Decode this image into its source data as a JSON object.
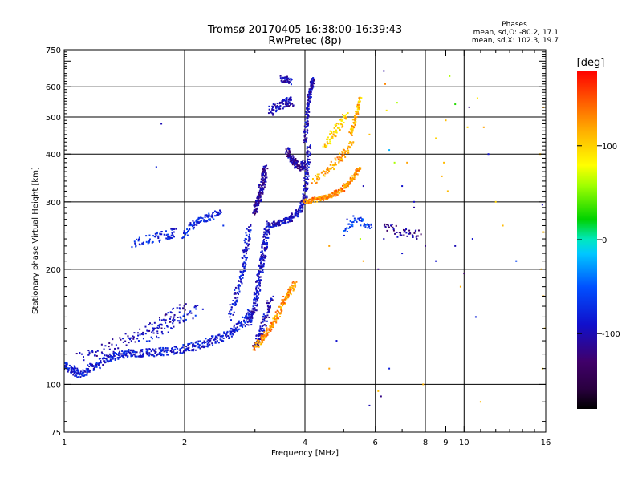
{
  "chart_data": {
    "type": "scatter",
    "title": "Tromsø 20170405 16:38:00-16:39:43",
    "subtitle": "RwPretec (8p)",
    "xlabel": "Frequency [MHz]",
    "ylabel": "Stationary phase Virtual Height [km]",
    "x_scale": "log",
    "y_scale": "log",
    "xlim": [
      1,
      16
    ],
    "ylim": [
      75,
      750
    ],
    "x_ticks": [
      1,
      2,
      4,
      6,
      8,
      9,
      10,
      16
    ],
    "x_tick_labels": [
      "1",
      "2",
      "4",
      "6",
      "8",
      "9",
      "10",
      "16"
    ],
    "y_ticks": [
      75,
      100,
      200,
      300,
      400,
      500,
      600,
      750
    ],
    "y_tick_labels": [
      "75",
      "100",
      "200",
      "300",
      "400",
      "500",
      "600",
      "750"
    ],
    "x_gridlines": [
      2,
      4,
      6,
      8,
      10
    ],
    "y_gridlines": [
      100,
      200,
      300,
      400,
      500,
      600
    ],
    "stats": {
      "header": "Phases",
      "line_o": "mean, sd,O: -80.2, 17.1",
      "line_x": "mean, sd,X: 102.3, 19.7"
    },
    "colorbar": {
      "label": "[deg]",
      "range": [
        -180,
        180
      ],
      "tick_values": [
        100,
        0,
        -100
      ],
      "tick_labels": [
        "100",
        "0",
        "-100"
      ]
    },
    "series": [
      {
        "traces": [
          {
            "x": [
              1.0,
              1.05,
              1.1,
              1.2,
              1.3,
              1.4,
              1.5,
              1.65,
              1.8,
              2.0,
              2.2,
              2.4,
              2.6,
              2.8,
              2.95
            ],
            "y": [
              112,
              109,
              106,
              112,
              118,
              119,
              121,
              121,
              122,
              124,
              127,
              131,
              136,
              145,
              155
            ],
            "spread": 0.035,
            "phase": -85,
            "n": 5
          },
          {
            "x": [
              2.9,
              3.0,
              3.05,
              3.1,
              3.15,
              3.2,
              3.25
            ],
            "y": [
              145,
              160,
              180,
              200,
              220,
              245,
              265
            ],
            "spread": 0.03,
            "phase": -95,
            "n": 5
          },
          {
            "x": [
              2.6,
              2.7,
              2.8,
              2.85,
              2.9
            ],
            "y": [
              150,
              175,
              200,
              230,
              260
            ],
            "spread": 0.03,
            "phase": -90,
            "n": 4
          },
          {
            "x": [
              1.1,
              1.3,
              1.5,
              1.7,
              1.85,
              2.0
            ],
            "y": [
              118,
              125,
              133,
              142,
              150,
              158
            ],
            "spread": 0.05,
            "phase": -100,
            "n": 3
          },
          {
            "x": [
              1.6,
              1.8,
              2.0,
              2.2
            ],
            "y": [
              132,
              140,
              150,
              158
            ],
            "spread": 0.05,
            "phase": -80,
            "n": 2
          },
          {
            "x": [
              3.0,
              3.05,
              3.1,
              3.15,
              3.2
            ],
            "y": [
              280,
              300,
              320,
              345,
              370
            ],
            "spread": 0.03,
            "phase": -110,
            "n": 5
          },
          {
            "x": [
              3.3,
              3.5,
              3.7,
              3.9,
              4.0,
              4.05,
              4.1
            ],
            "y": [
              262,
              265,
              272,
              285,
              310,
              360,
              430
            ],
            "spread": 0.025,
            "phase": -95,
            "n": 5
          },
          {
            "x": [
              3.0,
              3.1,
              3.2,
              3.3
            ],
            "y": [
              125,
              135,
              150,
              170
            ],
            "spread": 0.03,
            "phase": -100,
            "n": 4
          },
          {
            "x": [
              4.0,
              4.05,
              4.1,
              4.15,
              4.2
            ],
            "y": [
              430,
              500,
              560,
              600,
              630
            ],
            "spread": 0.02,
            "phase": -100,
            "n": 5
          },
          {
            "x": [
              3.6,
              3.7,
              3.8,
              3.9,
              4.0
            ],
            "y": [
              410,
              390,
              375,
              370,
              380
            ],
            "spread": 0.03,
            "phase": -110,
            "n": 4
          },
          {
            "x": [
              3.3,
              3.45,
              3.6,
              3.7
            ],
            "y": [
              520,
              535,
              545,
              550
            ],
            "spread": 0.04,
            "phase": -100,
            "n": 4
          },
          {
            "x": [
              3.5,
              3.6,
              3.7
            ],
            "y": [
              630,
              625,
              620
            ],
            "spread": 0.03,
            "phase": -95,
            "n": 3
          },
          {
            "x": [
              1.5,
              1.65,
              1.8,
              1.9
            ],
            "y": [
              235,
              240,
              245,
              250
            ],
            "spread": 0.04,
            "phase": -80,
            "n": 3
          },
          {
            "x": [
              2.0,
              2.1,
              2.2,
              2.35,
              2.5
            ],
            "y": [
              245,
              262,
              270,
              275,
              285
            ],
            "spread": 0.03,
            "phase": -75,
            "n": 3
          },
          {
            "x": [
              4.0,
              4.3,
              4.6,
              4.9,
              5.2,
              5.5
            ],
            "y": [
              300,
              305,
              310,
              320,
              340,
              370
            ],
            "spread": 0.02,
            "phase": 130,
            "n": 6
          },
          {
            "x": [
              4.2,
              4.5,
              4.8,
              5.0,
              5.3
            ],
            "y": [
              340,
              360,
              380,
              400,
              430
            ],
            "spread": 0.03,
            "phase": 120,
            "n": 3
          },
          {
            "x": [
              5.2,
              5.3,
              5.4,
              5.5
            ],
            "y": [
              450,
              480,
              520,
              560
            ],
            "spread": 0.02,
            "phase": 110,
            "n": 3
          },
          {
            "x": [
              3.0,
              3.2,
              3.4,
              3.6,
              3.8
            ],
            "y": [
              125,
              135,
              150,
              170,
              185
            ],
            "spread": 0.025,
            "phase": 125,
            "n": 6
          },
          {
            "x": [
              4.5,
              4.7,
              4.9,
              5.1
            ],
            "y": [
              420,
              450,
              480,
              510
            ],
            "spread": 0.03,
            "phase": 100,
            "n": 3
          },
          {
            "x": [
              5.0,
              5.3,
              5.6,
              5.9
            ],
            "y": [
              250,
              270,
              265,
              255
            ],
            "spread": 0.03,
            "phase": -60,
            "n": 2
          },
          {
            "x": [
              6.3,
              6.8,
              7.3,
              7.8
            ],
            "y": [
              260,
              250,
              248,
              245
            ],
            "spread": 0.04,
            "phase": -115,
            "n": 2
          }
        ]
      }
    ],
    "scattered_points": [
      [
        1.75,
        480,
        -100
      ],
      [
        1.7,
        370,
        -80
      ],
      [
        2.5,
        260,
        -70
      ],
      [
        6.3,
        660,
        -110
      ],
      [
        6.35,
        610,
        130
      ],
      [
        6.4,
        520,
        90
      ],
      [
        6.5,
        410,
        -20
      ],
      [
        6.7,
        380,
        60
      ],
      [
        7.0,
        330,
        -90
      ],
      [
        7.5,
        290,
        -110
      ],
      [
        8.0,
        230,
        -120
      ],
      [
        8.5,
        210,
        -90
      ],
      [
        9.0,
        490,
        110
      ],
      [
        9.2,
        640,
        60
      ],
      [
        9.5,
        230,
        -100
      ],
      [
        10.0,
        195,
        -130
      ],
      [
        10.2,
        470,
        100
      ],
      [
        10.8,
        560,
        90
      ],
      [
        11.2,
        470,
        120
      ],
      [
        11.5,
        400,
        -90
      ],
      [
        12.0,
        300,
        100
      ],
      [
        13.5,
        210,
        -60
      ],
      [
        15.5,
        400,
        110
      ],
      [
        15.7,
        295,
        -100
      ],
      [
        15.8,
        170,
        115
      ],
      [
        15.7,
        110,
        100
      ],
      [
        15.8,
        250,
        110
      ],
      [
        15.6,
        200,
        115
      ],
      [
        15.9,
        140,
        105
      ],
      [
        15.8,
        530,
        120
      ],
      [
        6.1,
        96,
        110
      ],
      [
        6.2,
        93,
        -120
      ],
      [
        5.8,
        88,
        -100
      ],
      [
        6.1,
        200,
        -120
      ],
      [
        7.5,
        300,
        -95
      ],
      [
        8.8,
        350,
        115
      ],
      [
        9.1,
        320,
        110
      ],
      [
        9.8,
        180,
        115
      ],
      [
        10.5,
        240,
        -90
      ],
      [
        11.0,
        90,
        110
      ],
      [
        6.5,
        110,
        -80
      ],
      [
        4.6,
        110,
        120
      ],
      [
        4.8,
        130,
        -90
      ],
      [
        5.5,
        240,
        60
      ],
      [
        5.6,
        210,
        120
      ],
      [
        6.3,
        240,
        -100
      ],
      [
        7.0,
        220,
        -90
      ],
      [
        8.5,
        440,
        100
      ],
      [
        8.9,
        380,
        110
      ],
      [
        9.5,
        540,
        30
      ],
      [
        10.3,
        530,
        -120
      ],
      [
        7.2,
        380,
        120
      ],
      [
        6.8,
        545,
        60
      ],
      [
        5.8,
        450,
        110
      ],
      [
        5.6,
        330,
        -100
      ],
      [
        4.6,
        230,
        120
      ],
      [
        5.1,
        270,
        -90
      ],
      [
        12.5,
        260,
        110
      ],
      [
        10.7,
        150,
        -80
      ],
      [
        7.9,
        100,
        115
      ]
    ]
  }
}
